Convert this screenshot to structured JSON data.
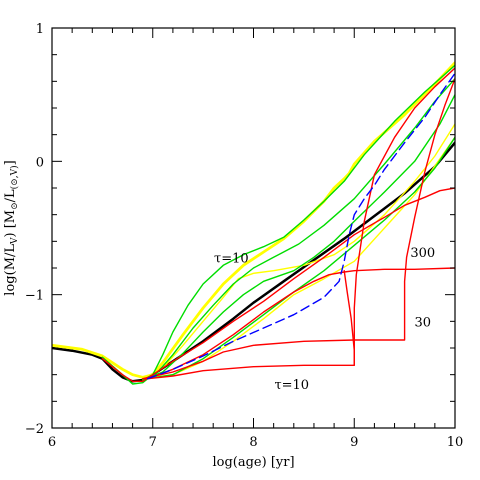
{
  "chart_data": {
    "type": "line",
    "xlabel": "log(age) [yr]",
    "ylabel": "log(M/L",
    "ylabel_sub": "V",
    "ylabel_mid": ")   [M",
    "ylabel_sub2": "⊙",
    "ylabel_mid2": "/L",
    "ylabel_sub3": "(⊙,V)",
    "ylabel_end": "]",
    "xlim": [
      6,
      10
    ],
    "ylim": [
      -2,
      1
    ],
    "xticks": [
      6,
      7,
      8,
      9,
      10
    ],
    "yticks": [
      -2,
      -1,
      0,
      1
    ],
    "xtick_labels": [
      "6",
      "7",
      "8",
      "9",
      "10"
    ],
    "ytick_labels": [
      "−2",
      "−1",
      "0",
      "1"
    ],
    "grid": false,
    "annotations": [
      {
        "text": "τ=10",
        "x": 7.78,
        "y": -0.72
      },
      {
        "text": "300",
        "x": 9.68,
        "y": -0.68
      },
      {
        "text": "30",
        "x": 9.68,
        "y": -1.2
      },
      {
        "text": "τ=10",
        "x": 8.38,
        "y": -1.67
      }
    ],
    "series": [
      {
        "color": "#000000",
        "width": 2.5,
        "dash": "",
        "points": [
          [
            6.0,
            -1.4
          ],
          [
            6.2,
            -1.42
          ],
          [
            6.4,
            -1.45
          ],
          [
            6.5,
            -1.48
          ],
          [
            6.6,
            -1.56
          ],
          [
            6.7,
            -1.62
          ],
          [
            6.8,
            -1.65
          ],
          [
            6.9,
            -1.64
          ],
          [
            7.0,
            -1.6
          ],
          [
            7.2,
            -1.5
          ],
          [
            7.5,
            -1.35
          ],
          [
            7.8,
            -1.18
          ],
          [
            8.0,
            -1.06
          ],
          [
            8.3,
            -0.9
          ],
          [
            8.6,
            -0.74
          ],
          [
            8.9,
            -0.58
          ],
          [
            9.2,
            -0.41
          ],
          [
            9.5,
            -0.24
          ],
          [
            9.8,
            -0.04
          ],
          [
            10.0,
            0.14
          ]
        ]
      },
      {
        "color": "#ffff00",
        "width": 2.8,
        "dash": "",
        "points": [
          [
            6.0,
            -1.38
          ],
          [
            6.3,
            -1.41
          ],
          [
            6.5,
            -1.46
          ],
          [
            6.6,
            -1.51
          ],
          [
            6.7,
            -1.56
          ],
          [
            6.8,
            -1.6
          ],
          [
            6.9,
            -1.62
          ],
          [
            7.0,
            -1.6
          ],
          [
            7.1,
            -1.51
          ],
          [
            7.3,
            -1.3
          ],
          [
            7.5,
            -1.1
          ],
          [
            7.7,
            -0.92
          ],
          [
            7.9,
            -0.78
          ],
          [
            8.1,
            -0.68
          ],
          [
            8.3,
            -0.58
          ],
          [
            8.5,
            -0.45
          ],
          [
            8.7,
            -0.3
          ],
          [
            8.8,
            -0.2
          ],
          [
            8.9,
            -0.13
          ],
          [
            8.95,
            -0.09
          ],
          [
            9.0,
            -0.02
          ],
          [
            9.2,
            0.15
          ],
          [
            9.5,
            0.35
          ],
          [
            9.8,
            0.58
          ],
          [
            10.0,
            0.74
          ]
        ]
      },
      {
        "color": "#ffff00",
        "width": 1.4,
        "dash": "",
        "points": [
          [
            6.9,
            -1.63
          ],
          [
            7.1,
            -1.55
          ],
          [
            7.3,
            -1.38
          ],
          [
            7.5,
            -1.2
          ],
          [
            7.7,
            -1.02
          ],
          [
            7.85,
            -0.88
          ],
          [
            8.0,
            -0.84
          ],
          [
            8.2,
            -0.82
          ],
          [
            8.5,
            -0.78
          ],
          [
            8.8,
            -0.7
          ],
          [
            9.0,
            -0.6
          ],
          [
            9.3,
            -0.4
          ],
          [
            9.6,
            -0.15
          ],
          [
            9.8,
            0.04
          ],
          [
            10.0,
            0.28
          ]
        ]
      },
      {
        "color": "#ffff00",
        "width": 1.4,
        "dash": "",
        "points": [
          [
            6.9,
            -1.63
          ],
          [
            7.2,
            -1.6
          ],
          [
            7.5,
            -1.5
          ],
          [
            7.8,
            -1.35
          ],
          [
            8.1,
            -1.18
          ],
          [
            8.4,
            -1.0
          ],
          [
            8.7,
            -0.88
          ],
          [
            9.0,
            -0.75
          ],
          [
            9.3,
            -0.5
          ],
          [
            9.6,
            -0.25
          ],
          [
            10.0,
            0.18
          ]
        ]
      },
      {
        "color": "#00dd00",
        "width": 1.4,
        "dash": "",
        "points": [
          [
            6.5,
            -1.47
          ],
          [
            6.7,
            -1.6
          ],
          [
            6.8,
            -1.67
          ],
          [
            6.9,
            -1.66
          ],
          [
            7.0,
            -1.6
          ],
          [
            7.1,
            -1.45
          ],
          [
            7.2,
            -1.28
          ],
          [
            7.35,
            -1.08
          ],
          [
            7.5,
            -0.92
          ],
          [
            7.7,
            -0.78
          ],
          [
            7.9,
            -0.7
          ],
          [
            8.1,
            -0.64
          ],
          [
            8.3,
            -0.57
          ],
          [
            8.5,
            -0.44
          ],
          [
            8.7,
            -0.3
          ],
          [
            8.9,
            -0.15
          ],
          [
            9.1,
            0.05
          ],
          [
            9.4,
            0.3
          ],
          [
            9.7,
            0.52
          ],
          [
            10.0,
            0.72
          ]
        ]
      },
      {
        "color": "#00dd00",
        "width": 1.4,
        "dash": "",
        "points": [
          [
            6.9,
            -1.64
          ],
          [
            7.05,
            -1.58
          ],
          [
            7.2,
            -1.45
          ],
          [
            7.4,
            -1.25
          ],
          [
            7.6,
            -1.08
          ],
          [
            7.8,
            -0.92
          ],
          [
            8.0,
            -0.8
          ],
          [
            8.2,
            -0.72
          ],
          [
            8.45,
            -0.62
          ],
          [
            8.7,
            -0.48
          ],
          [
            9.0,
            -0.28
          ],
          [
            9.3,
            -0.02
          ],
          [
            9.6,
            0.25
          ],
          [
            9.8,
            0.45
          ],
          [
            10.0,
            0.62
          ]
        ]
      },
      {
        "color": "#00dd00",
        "width": 1.4,
        "dash": "",
        "points": [
          [
            6.9,
            -1.64
          ],
          [
            7.1,
            -1.58
          ],
          [
            7.3,
            -1.44
          ],
          [
            7.5,
            -1.28
          ],
          [
            7.7,
            -1.13
          ],
          [
            7.9,
            -1.0
          ],
          [
            8.1,
            -0.9
          ],
          [
            8.4,
            -0.82
          ],
          [
            8.6,
            -0.72
          ],
          [
            8.8,
            -0.6
          ],
          [
            9.0,
            -0.45
          ],
          [
            9.3,
            -0.23
          ],
          [
            9.6,
            0.0
          ],
          [
            9.85,
            0.28
          ],
          [
            10.0,
            0.5
          ]
        ]
      },
      {
        "color": "#00dd00",
        "width": 1.4,
        "dash": "",
        "points": [
          [
            6.95,
            -1.63
          ],
          [
            7.2,
            -1.6
          ],
          [
            7.5,
            -1.48
          ],
          [
            7.8,
            -1.32
          ],
          [
            8.1,
            -1.15
          ],
          [
            8.4,
            -0.98
          ],
          [
            8.7,
            -0.82
          ],
          [
            9.0,
            -0.63
          ],
          [
            9.3,
            -0.44
          ],
          [
            9.6,
            -0.23
          ],
          [
            9.8,
            -0.05
          ],
          [
            10.0,
            0.18
          ]
        ]
      },
      {
        "color": "#ff0000",
        "width": 1.4,
        "dash": "",
        "points": [
          [
            6.5,
            -1.48
          ],
          [
            6.7,
            -1.6
          ],
          [
            6.8,
            -1.65
          ],
          [
            6.9,
            -1.65
          ],
          [
            7.0,
            -1.6
          ],
          [
            7.2,
            -1.5
          ],
          [
            7.5,
            -1.36
          ],
          [
            7.8,
            -1.2
          ],
          [
            8.1,
            -1.05
          ],
          [
            8.4,
            -0.88
          ],
          [
            8.7,
            -0.72
          ],
          [
            9.0,
            -0.55
          ],
          [
            9.3,
            -0.42
          ],
          [
            9.5,
            -0.33
          ],
          [
            9.7,
            -0.27
          ],
          [
            9.85,
            -0.22
          ],
          [
            10.0,
            -0.2
          ]
        ]
      },
      {
        "color": "#ff0000",
        "width": 1.4,
        "dash": "",
        "points": [
          [
            6.9,
            -1.63
          ],
          [
            7.2,
            -1.58
          ],
          [
            7.5,
            -1.5
          ],
          [
            7.7,
            -1.43
          ],
          [
            8.0,
            -1.38
          ],
          [
            8.5,
            -1.35
          ],
          [
            9.0,
            -1.34
          ],
          [
            9.5,
            -1.34
          ],
          [
            9.5,
            -0.9
          ],
          [
            9.52,
            -0.72
          ],
          [
            9.6,
            -0.42
          ],
          [
            9.7,
            -0.08
          ],
          [
            9.8,
            0.2
          ],
          [
            9.9,
            0.42
          ],
          [
            10.0,
            0.62
          ]
        ]
      },
      {
        "color": "#ff0000",
        "width": 1.4,
        "dash": "",
        "points": [
          [
            6.95,
            -1.63
          ],
          [
            7.2,
            -1.61
          ],
          [
            7.5,
            -1.57
          ],
          [
            8.0,
            -1.54
          ],
          [
            8.5,
            -1.53
          ],
          [
            9.0,
            -1.53
          ],
          [
            9.0,
            -1.1
          ],
          [
            9.02,
            -0.85
          ],
          [
            9.1,
            -0.45
          ],
          [
            9.2,
            -0.1
          ],
          [
            9.4,
            0.18
          ],
          [
            9.6,
            0.4
          ],
          [
            9.8,
            0.56
          ],
          [
            10.0,
            0.7
          ]
        ]
      },
      {
        "color": "#ff0000",
        "width": 1.4,
        "dash": "",
        "points": [
          [
            6.95,
            -1.63
          ],
          [
            7.2,
            -1.56
          ],
          [
            7.5,
            -1.45
          ],
          [
            7.8,
            -1.3
          ],
          [
            8.1,
            -1.13
          ],
          [
            8.4,
            -0.98
          ],
          [
            8.6,
            -0.9
          ],
          [
            8.75,
            -0.85
          ],
          [
            8.9,
            -0.83
          ],
          [
            9.0,
            -0.82
          ],
          [
            9.3,
            -0.81
          ],
          [
            9.6,
            -0.81
          ],
          [
            10.0,
            -0.8
          ]
        ]
      },
      {
        "color": "#0000ff",
        "width": 1.4,
        "dash": "9,5",
        "points": [
          [
            6.95,
            -1.63
          ],
          [
            7.2,
            -1.56
          ],
          [
            7.5,
            -1.46
          ],
          [
            7.8,
            -1.35
          ],
          [
            8.1,
            -1.25
          ],
          [
            8.4,
            -1.15
          ],
          [
            8.7,
            -1.02
          ],
          [
            8.85,
            -0.9
          ],
          [
            8.9,
            -0.75
          ],
          [
            8.95,
            -0.55
          ],
          [
            9.0,
            -0.4
          ],
          [
            9.1,
            -0.28
          ],
          [
            9.2,
            -0.18
          ],
          [
            9.3,
            -0.06
          ],
          [
            9.5,
            0.14
          ],
          [
            9.7,
            0.33
          ],
          [
            9.85,
            0.5
          ],
          [
            10.0,
            0.66
          ]
        ]
      },
      {
        "color": "#ff0000",
        "width": 1.4,
        "dash": "",
        "points": [
          [
            8.9,
            -0.82
          ],
          [
            8.93,
            -0.98
          ],
          [
            8.97,
            -1.18
          ],
          [
            9.0,
            -1.42
          ],
          [
            9.0,
            -1.53
          ]
        ]
      }
    ]
  }
}
